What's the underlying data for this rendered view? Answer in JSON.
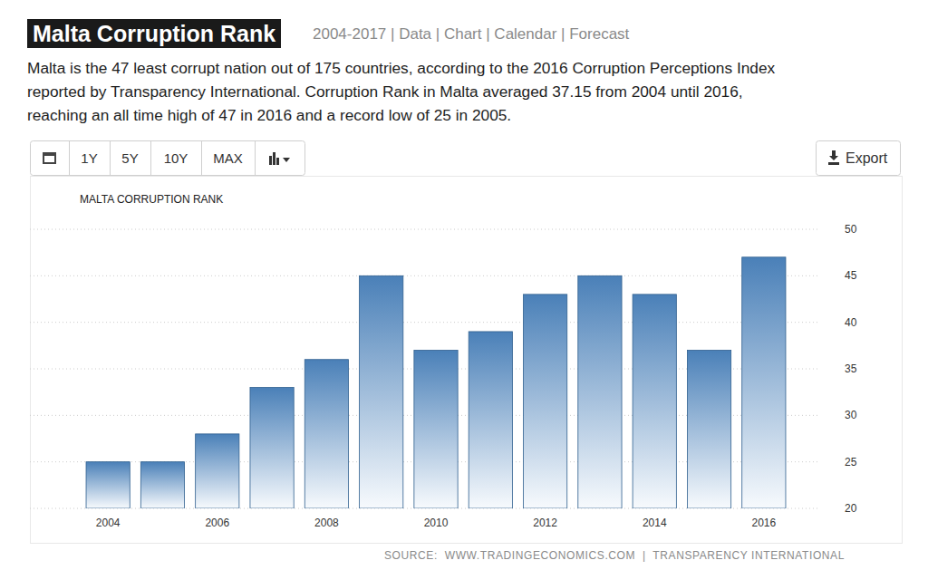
{
  "header": {
    "title": "Malta Corruption Rank",
    "nav": "2004-2017 | Data | Chart | Calendar | Forecast"
  },
  "description": [
    "Malta is the 47 least corrupt nation out of 175 countries, according to the 2016 Corruption Perceptions Index",
    "reported by Transparency International. Corruption Rank in Malta averaged 37.15 from 2004 until 2016,",
    "reaching an all time high of 47 in 2016 and a record low of 25 in 2005."
  ],
  "toolbar": {
    "buttons": [
      "1Y",
      "5Y",
      "10Y",
      "MAX"
    ],
    "export": "Export"
  },
  "chart_data": {
    "type": "bar",
    "title": "MALTA CORRUPTION RANK",
    "source": "SOURCE:  WWW.TRADINGECONOMICS.COM  |  TRANSPARENCY INTERNATIONAL",
    "categories": [
      "2004",
      null,
      "2006",
      null,
      "2008",
      null,
      "2010",
      null,
      "2012",
      null,
      "2014",
      null,
      "2016"
    ],
    "values": [
      25,
      25,
      28,
      33,
      36,
      45,
      37,
      39,
      43,
      45,
      43,
      37,
      47
    ],
    "color": "#4a80b8",
    "ylim": [
      20,
      50
    ],
    "yticks": [
      20,
      25,
      30,
      35,
      40,
      45,
      50
    ],
    "grid": true
  }
}
